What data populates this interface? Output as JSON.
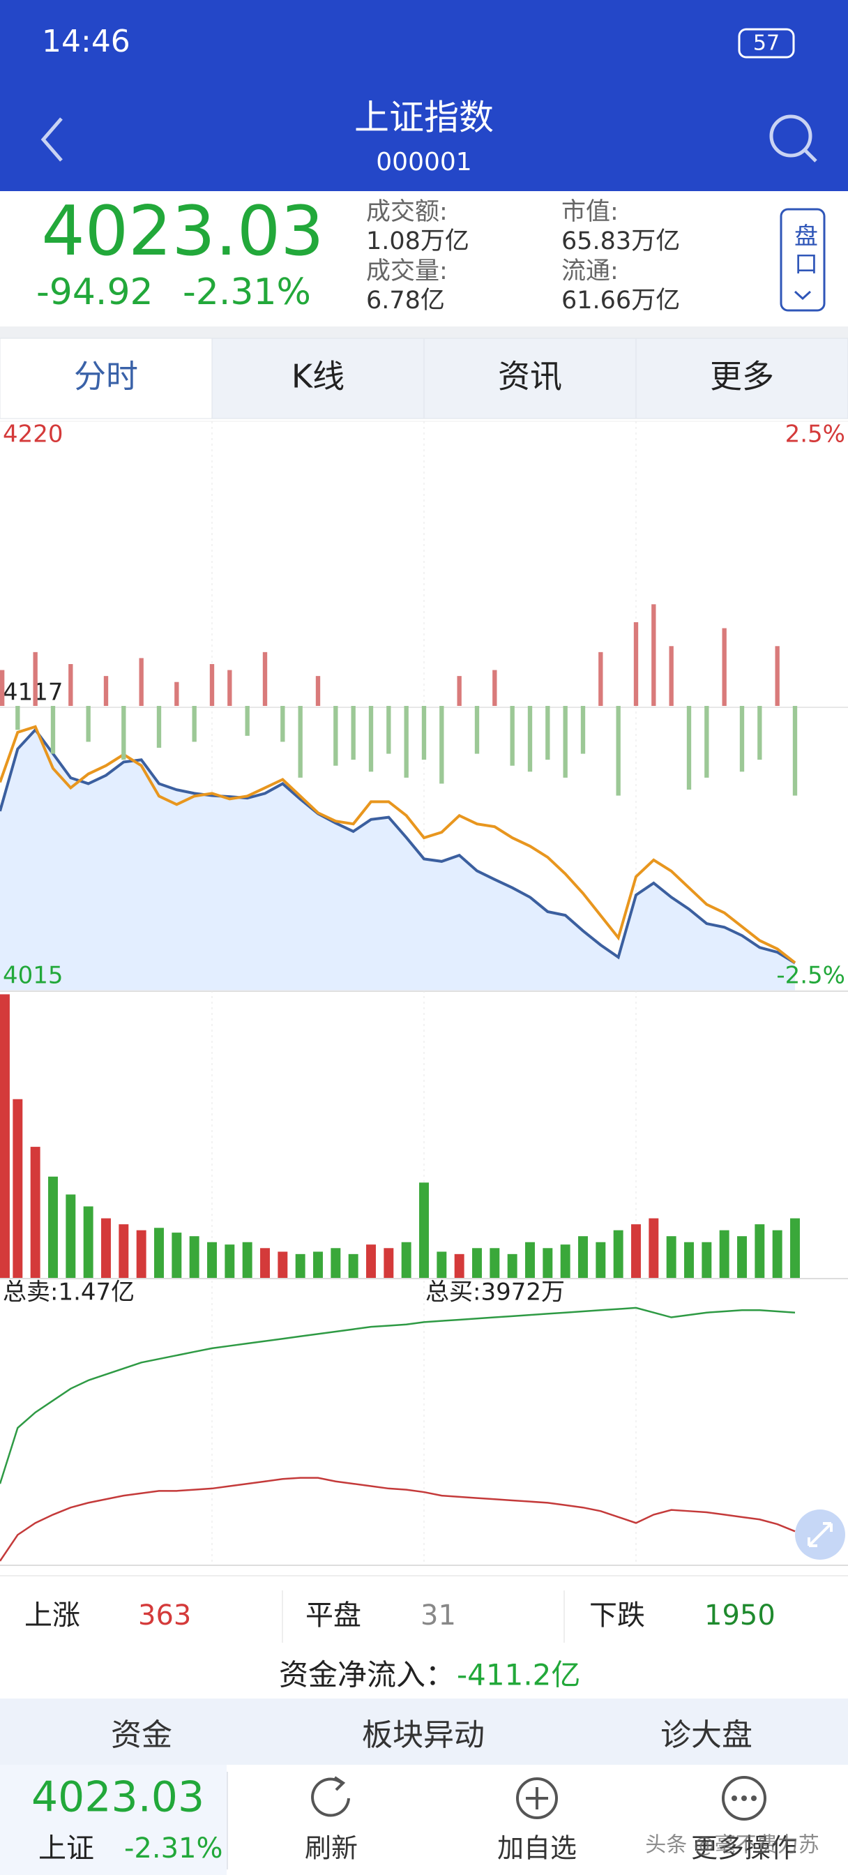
{
  "status_bar": {
    "time": "14:46",
    "battery": "57"
  },
  "header": {
    "title": "上证指数",
    "code": "000001"
  },
  "quote": {
    "price": "4023.03",
    "change": "-94.92",
    "change_pct": "-2.31%",
    "stats": [
      {
        "label": "成交额:",
        "value": "1.08万亿"
      },
      {
        "label": "市值:",
        "value": "65.83万亿"
      },
      {
        "label": "成交量:",
        "value": "6.78亿"
      },
      {
        "label": "流通:",
        "value": "61.66万亿"
      }
    ],
    "button": "盘口"
  },
  "tabs": [
    "分时",
    "K线",
    "资讯",
    "更多"
  ],
  "chart_data": [
    {
      "type": "line",
      "xlim": [
        0,
        240
      ],
      "x": [
        0,
        5,
        10,
        15,
        20,
        25,
        30,
        35,
        40,
        45,
        50,
        55,
        60,
        65,
        70,
        75,
        80,
        85,
        90,
        95,
        100,
        105,
        110,
        115,
        120,
        125,
        130,
        135,
        140,
        145,
        150,
        155,
        160,
        165,
        170,
        175,
        180,
        185,
        190,
        195,
        200,
        205,
        210,
        215,
        220,
        225
      ],
      "ylim": [
        4015,
        4220
      ],
      "yticks": [
        4220,
        4117,
        4015
      ],
      "y2lim": [
        -2.5,
        2.5
      ],
      "y2ticks": [
        {
          "value": 2.5,
          "label": "2.5%"
        },
        {
          "value": -2.5,
          "label": "-2.5%"
        }
      ],
      "area_color": "#e3eeff",
      "series": [
        {
          "color": "#3b5f9f",
          "values": [
            4079.6,
            4102.0,
            4108.9,
            4100.3,
            4091.6,
            4089.5,
            4092.5,
            4097.3,
            4098.1,
            4089.5,
            4087.3,
            4086.0,
            4085.2,
            4084.8,
            4084.3,
            4086.0,
            4089.5,
            4083.9,
            4078.7,
            4075.3,
            4072.3,
            4076.6,
            4077.4,
            4070.1,
            4062.4,
            4061.5,
            4063.7,
            4058.1,
            4055.0,
            4052.0,
            4048.6,
            4043.4,
            4042.1,
            4036.5,
            4031.4,
            4027.0,
            4049.4,
            4053.7,
            4048.6,
            4044.3,
            4039.1,
            4037.8,
            4034.8,
            4030.5,
            4028.8,
            4024.9
          ]
        },
        {
          "color": "#e8961e",
          "values": [
            4090,
            4108,
            4110,
            4095,
            4088,
            4093,
            4096,
            4100,
            4096,
            4085,
            4082,
            4085,
            4086,
            4084,
            4085,
            4088,
            4091,
            4085,
            4079,
            4076,
            4075,
            4083,
            4083,
            4078,
            4070,
            4072,
            4078,
            4075,
            4074,
            4070,
            4067,
            4063,
            4057,
            4050,
            4042,
            4034,
            4056,
            4062,
            4058,
            4052,
            4046,
            4043,
            4038,
            4033,
            4030,
            4025
          ]
        }
      ]
    },
    {
      "type": "bar",
      "xlim": [
        0,
        240
      ],
      "x": [
        0,
        5,
        10,
        15,
        20,
        25,
        30,
        35,
        40,
        45,
        50,
        55,
        60,
        65,
        70,
        75,
        80,
        85,
        90,
        95,
        100,
        105,
        110,
        115,
        120,
        125,
        130,
        135,
        140,
        145,
        150,
        155,
        160,
        165,
        170,
        175,
        180,
        185,
        190,
        195,
        200,
        205,
        210,
        215,
        220,
        225
      ],
      "ylim": [
        -238,
        238
      ],
      "colors": [
        "#d97a7a",
        "#9cc896"
      ],
      "values": [
        30,
        -20,
        45,
        -40,
        35,
        -30,
        25,
        -45,
        40,
        -35,
        20,
        -30,
        35,
        30,
        -25,
        45,
        -30,
        -60,
        25,
        -50,
        -45,
        -55,
        -40,
        -60,
        -45,
        -65,
        25,
        -40,
        30,
        -50,
        -55,
        -45,
        -60,
        -40,
        45,
        -75,
        70,
        85,
        50,
        -70,
        -60,
        65,
        -55,
        -45,
        50,
        -75
      ]
    },
    {
      "type": "bar",
      "xlim": [
        0,
        240
      ],
      "x": [
        0,
        5,
        10,
        15,
        20,
        25,
        30,
        35,
        40,
        45,
        50,
        55,
        60,
        65,
        70,
        75,
        80,
        85,
        90,
        95,
        100,
        105,
        110,
        115,
        120,
        125,
        130,
        135,
        140,
        145,
        150,
        155,
        160,
        165,
        170,
        175,
        180,
        185,
        190,
        195,
        200,
        205,
        210,
        215,
        220,
        225
      ],
      "ylim": [
        0,
        240
      ],
      "colors": [
        "#d43a3a",
        "#3aa83a"
      ],
      "values": [
        238,
        150,
        110,
        85,
        70,
        60,
        50,
        45,
        40,
        42,
        38,
        35,
        30,
        28,
        30,
        25,
        22,
        20,
        22,
        25,
        20,
        28,
        25,
        30,
        80,
        22,
        20,
        25,
        25,
        20,
        30,
        25,
        28,
        35,
        30,
        40,
        45,
        50,
        35,
        30,
        30,
        40,
        35,
        45,
        40,
        50
      ]
    },
    {
      "type": "line",
      "xlim": [
        0,
        240
      ],
      "x": [
        0,
        5,
        10,
        15,
        20,
        25,
        30,
        35,
        40,
        45,
        50,
        55,
        60,
        65,
        70,
        75,
        80,
        85,
        90,
        95,
        100,
        105,
        110,
        115,
        120,
        125,
        130,
        135,
        140,
        145,
        150,
        155,
        160,
        165,
        170,
        175,
        180,
        185,
        190,
        195,
        200,
        205,
        210,
        215,
        220,
        225
      ],
      "ylim": [
        0,
        240
      ],
      "annotations": [
        "总卖:1.47亿",
        "总买:3972万"
      ],
      "series": [
        {
          "color": "#2e9a44",
          "values": [
            68,
            115,
            128,
            138,
            148,
            155,
            160,
            165,
            170,
            173,
            176,
            179,
            182,
            184,
            186,
            188,
            190,
            192,
            194,
            196,
            198,
            200,
            201,
            202,
            204,
            205,
            206,
            207,
            208,
            209,
            210,
            211,
            212,
            213,
            214,
            215,
            216,
            212,
            208,
            210,
            212,
            213,
            214,
            214,
            213,
            212
          ]
        },
        {
          "color": "#c43a3a",
          "values": [
            3,
            25,
            35,
            42,
            48,
            52,
            55,
            58,
            60,
            62,
            62,
            63,
            64,
            66,
            68,
            70,
            72,
            73,
            73,
            70,
            68,
            66,
            64,
            63,
            61,
            58,
            57,
            56,
            55,
            54,
            53,
            52,
            50,
            48,
            45,
            40,
            35,
            42,
            46,
            45,
            44,
            42,
            40,
            38,
            34,
            28
          ]
        }
      ]
    }
  ],
  "breadth": [
    {
      "label": "上涨",
      "value": "363"
    },
    {
      "label": "平盘",
      "value": "31"
    },
    {
      "label": "下跌",
      "value": "1950"
    }
  ],
  "net_flow": {
    "label": "资金净流入：",
    "value": "-411.2亿"
  },
  "bottom_tabs": [
    "资金",
    "板块异动",
    "诊大盘"
  ],
  "footer": {
    "price": "4023.03",
    "name": "上证",
    "change_pct": "-2.31%",
    "actions": [
      "刷新",
      "加自选",
      "更多操作"
    ],
    "watermark": "头条 @毫不费力苏"
  }
}
